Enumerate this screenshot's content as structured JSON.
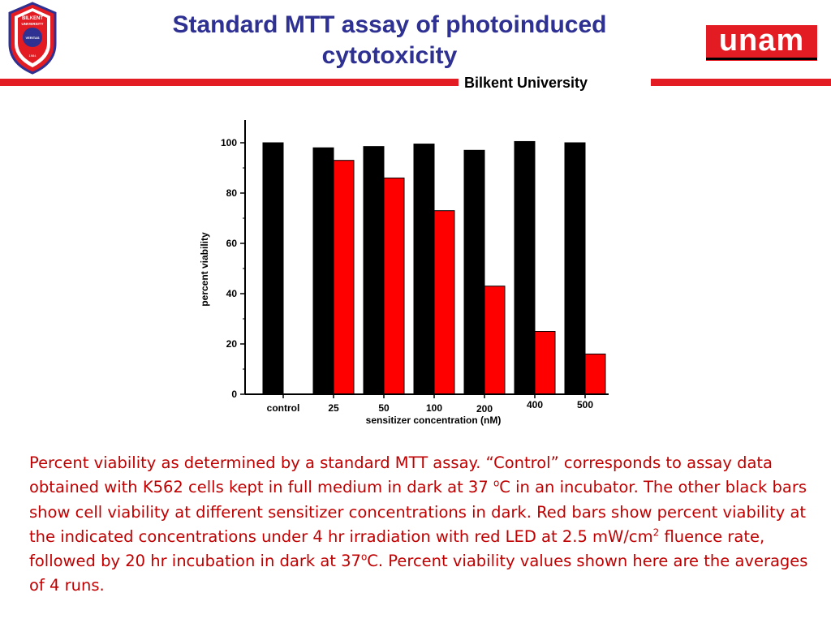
{
  "header": {
    "title": "Standard MTT assay of photoinduced cytotoxicity",
    "affiliation": "Bilkent University",
    "logo_left_text": [
      "BILKENT",
      "UNIVERSITY",
      "VERITAS",
      "1984"
    ],
    "logo_right_text": "unam"
  },
  "colors": {
    "title": "#2e3192",
    "accent_red": "#e31b23",
    "caption": "#c00000",
    "dark_bar": "#000000",
    "light_bar": "#ff0000"
  },
  "chart_data": {
    "type": "bar",
    "categories": [
      "control",
      "25",
      "50",
      "100",
      "200",
      "400",
      "500"
    ],
    "series": [
      {
        "color": "#000000",
        "values": [
          100,
          98,
          98.5,
          99.5,
          97,
          100.5,
          100
        ]
      },
      {
        "color": "#ff0000",
        "values": [
          null,
          93,
          86,
          73,
          43,
          25,
          16
        ]
      }
    ],
    "title": "",
    "xlabel": "sensitizer concentration (nM)",
    "ylabel": "percent viability",
    "ylim": [
      0,
      100
    ],
    "yticks": [
      0,
      20,
      40,
      60,
      80,
      100
    ],
    "grid": false,
    "legend": "none"
  },
  "caption": {
    "p1": "Percent viability as determined by a standard MTT assay.  “Control” corresponds to assay data obtained with K562 cells kept in full medium in dark at 37 ",
    "sup1": "o",
    "p2": "C in an incubator.  The other black bars show cell viability at different sensitizer concentrations in dark.  Red bars show percent viability at the indicated concentrations under 4 hr irradiation with red LED at 2.5 mW/cm",
    "sup2": "2",
    "p3": " fluence rate, followed by 20 hr incubation in dark at 37",
    "sup3": "o",
    "p4": "C. Percent viability values shown here are the averages of 4 runs."
  }
}
